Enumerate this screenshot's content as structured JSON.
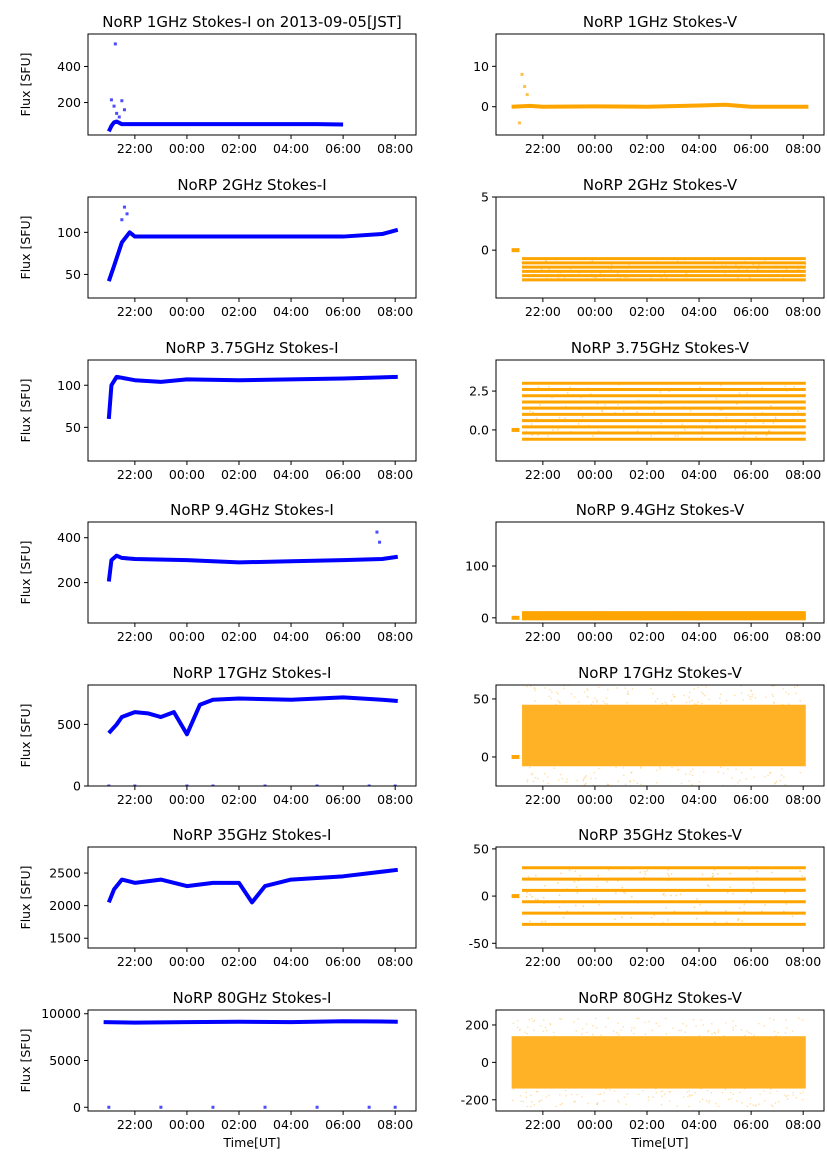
{
  "colors": {
    "stokes_i": "#0000ff",
    "stokes_v": "#ffa500"
  },
  "common": {
    "ylabel": "Flux [SFU]",
    "xlabel": "Time[UT]",
    "xticks": [
      "22:00",
      "00:00",
      "02:00",
      "04:00",
      "06:00",
      "08:00"
    ]
  },
  "chart_data": [
    {
      "id": "p1i",
      "type": "scatter",
      "title": "NoRP 1GHz Stokes-I on 2013-09-05[JST]",
      "ylabel": "Flux [SFU]",
      "color": "#0000ff",
      "ylim": [
        20,
        580
      ],
      "yticks": [
        200,
        400
      ],
      "series": [
        {
          "x": [
            21.0,
            21.1,
            21.2,
            21.3,
            21.5,
            22.0,
            23.0,
            1.0,
            3.0,
            5.0,
            6.0
          ],
          "y": [
            40,
            70,
            90,
            95,
            80,
            80,
            80,
            80,
            80,
            80,
            78
          ]
        }
      ],
      "scatter_points": [
        [
          21.1,
          215
        ],
        [
          21.2,
          180
        ],
        [
          21.25,
          525
        ],
        [
          21.3,
          140
        ],
        [
          21.4,
          120
        ],
        [
          21.5,
          210
        ],
        [
          21.6,
          160
        ]
      ]
    },
    {
      "id": "p1v",
      "type": "scatter",
      "title": "NoRP 1GHz Stokes-V",
      "color": "#ffa500",
      "ylim": [
        -7,
        18
      ],
      "yticks": [
        0,
        10
      ],
      "series": [
        {
          "x": [
            20.8,
            21.5,
            22.0,
            0.0,
            2.0,
            4.0,
            5.0,
            6.0,
            8.2
          ],
          "y": [
            0,
            0.2,
            0,
            0.1,
            0,
            0.3,
            0.5,
            0,
            0
          ]
        }
      ],
      "scatter_points": [
        [
          21.2,
          8
        ],
        [
          21.3,
          5
        ],
        [
          21.1,
          -4
        ],
        [
          21.4,
          3
        ]
      ]
    },
    {
      "id": "p2i",
      "type": "scatter",
      "title": "NoRP 2GHz Stokes-I",
      "ylabel": "Flux [SFU]",
      "color": "#0000ff",
      "ylim": [
        22,
        142
      ],
      "yticks": [
        50,
        100
      ],
      "series": [
        {
          "x": [
            21.0,
            21.2,
            21.5,
            21.8,
            22.0,
            0.0,
            2.0,
            4.0,
            6.0,
            7.5,
            8.1
          ],
          "y": [
            42,
            60,
            88,
            100,
            95,
            95,
            95,
            95,
            95,
            98,
            103
          ]
        }
      ],
      "scatter_points": [
        [
          21.6,
          130
        ],
        [
          21.7,
          122
        ],
        [
          21.5,
          115
        ]
      ]
    },
    {
      "id": "p2v",
      "type": "scatter",
      "title": "NoRP 2GHz Stokes-V",
      "color": "#ffa500",
      "ylim": [
        -4.5,
        5.0
      ],
      "yticks": [
        0,
        5
      ],
      "series": [
        {
          "x": [
            20.8,
            21.1
          ],
          "y": [
            0,
            0
          ]
        }
      ],
      "band": {
        "x0": 21.2,
        "x1": 8.1,
        "levels": [
          -0.8,
          -1.2,
          -1.6,
          -2.0,
          -2.4,
          -2.8
        ]
      }
    },
    {
      "id": "p3i",
      "type": "scatter",
      "title": "NoRP 3.75GHz Stokes-I",
      "ylabel": "Flux [SFU]",
      "color": "#0000ff",
      "ylim": [
        10,
        130
      ],
      "yticks": [
        50,
        100
      ],
      "series": [
        {
          "x": [
            21.0,
            21.1,
            21.3,
            22.0,
            23.0,
            0.0,
            2.0,
            4.0,
            6.0,
            8.1
          ],
          "y": [
            60,
            100,
            110,
            106,
            104,
            107,
            106,
            107,
            108,
            110
          ]
        }
      ]
    },
    {
      "id": "p3v",
      "type": "scatter",
      "title": "NoRP 3.75GHz Stokes-V",
      "color": "#ffa500",
      "ylim": [
        -2,
        4.5
      ],
      "yticks": [
        0.0,
        2.5
      ],
      "series": [
        {
          "x": [
            20.8,
            21.1
          ],
          "y": [
            0,
            0
          ]
        }
      ],
      "band": {
        "x0": 21.2,
        "x1": 8.1,
        "levels": [
          3.0,
          2.6,
          2.2,
          1.8,
          1.4,
          1.0,
          0.6,
          0.2,
          -0.2,
          -0.6
        ]
      }
    },
    {
      "id": "p4i",
      "type": "scatter",
      "title": "NoRP 9.4GHz Stokes-I",
      "ylabel": "Flux [SFU]",
      "color": "#0000ff",
      "ylim": [
        20,
        470
      ],
      "yticks": [
        200,
        400
      ],
      "series": [
        {
          "x": [
            21.0,
            21.1,
            21.3,
            21.5,
            22.0,
            0.0,
            2.0,
            4.0,
            6.0,
            7.5,
            8.1
          ],
          "y": [
            205,
            300,
            320,
            310,
            305,
            300,
            290,
            295,
            300,
            305,
            315
          ]
        }
      ],
      "scatter_points": [
        [
          7.3,
          425
        ],
        [
          7.4,
          380
        ]
      ]
    },
    {
      "id": "p4v",
      "type": "scatter",
      "title": "NoRP 9.4GHz Stokes-V",
      "color": "#ffa500",
      "ylim": [
        -10,
        185
      ],
      "yticks": [
        0,
        100
      ],
      "series": [
        {
          "x": [
            20.8,
            21.1
          ],
          "y": [
            0,
            0
          ]
        }
      ],
      "band": {
        "x0": 21.2,
        "x1": 8.1,
        "levels": [
          10,
          7,
          4,
          1,
          -2
        ]
      }
    },
    {
      "id": "p5i",
      "type": "scatter",
      "title": "NoRP 17GHz Stokes-I",
      "ylabel": "Flux [SFU]",
      "color": "#0000ff",
      "ylim": [
        0,
        820
      ],
      "yticks": [
        0,
        500
      ],
      "series": [
        {
          "x": [
            21.0,
            21.3,
            21.5,
            22.0,
            22.5,
            23.0,
            23.5,
            0.0,
            0.5,
            1.0,
            2.0,
            4.0,
            6.0,
            7.5,
            8.1
          ],
          "y": [
            430,
            500,
            560,
            600,
            590,
            560,
            600,
            420,
            660,
            700,
            710,
            700,
            720,
            700,
            690
          ]
        }
      ],
      "scatter_points": [
        [
          21.0,
          0
        ],
        [
          22.0,
          0
        ],
        [
          0.0,
          0
        ],
        [
          1.0,
          0
        ],
        [
          3.0,
          0
        ],
        [
          5.0,
          0
        ],
        [
          7.0,
          0
        ],
        [
          8.0,
          0
        ]
      ]
    },
    {
      "id": "p5v",
      "type": "scatter",
      "title": "NoRP 17GHz Stokes-V",
      "color": "#ffa500",
      "ylim": [
        -25,
        62
      ],
      "yticks": [
        0,
        50
      ],
      "series": [
        {
          "x": [
            20.8,
            21.1
          ],
          "y": [
            0,
            0
          ]
        }
      ],
      "cloud": {
        "x0": 21.2,
        "x1": 8.1,
        "ymin": -8,
        "ymax": 45
      }
    },
    {
      "id": "p6i",
      "type": "scatter",
      "title": "NoRP 35GHz Stokes-I",
      "ylabel": "Flux [SFU]",
      "color": "#0000ff",
      "ylim": [
        1350,
        2900
      ],
      "yticks": [
        1500,
        2000,
        2500
      ],
      "series": [
        {
          "x": [
            21.0,
            21.2,
            21.5,
            22.0,
            23.0,
            0.0,
            1.0,
            2.0,
            2.5,
            3.0,
            4.0,
            6.0,
            8.1
          ],
          "y": [
            2050,
            2250,
            2400,
            2350,
            2400,
            2300,
            2350,
            2350,
            2050,
            2300,
            2400,
            2450,
            2550
          ]
        }
      ]
    },
    {
      "id": "p6v",
      "type": "scatter",
      "title": "NoRP 35GHz Stokes-V",
      "color": "#ffa500",
      "ylim": [
        -55,
        52
      ],
      "yticks": [
        -50,
        0,
        50
      ],
      "series": [
        {
          "x": [
            20.8,
            21.1
          ],
          "y": [
            0,
            0
          ]
        }
      ],
      "band": {
        "x0": 21.2,
        "x1": 8.1,
        "levels": [
          30,
          18,
          6,
          -6,
          -18,
          -30
        ]
      }
    },
    {
      "id": "p7i",
      "type": "scatter",
      "title": "NoRP 80GHz Stokes-I",
      "ylabel": "Flux [SFU]",
      "xlabel": "Time[UT]",
      "color": "#0000ff",
      "ylim": [
        -400,
        10400
      ],
      "yticks": [
        0,
        5000,
        10000
      ],
      "series": [
        {
          "x": [
            20.8,
            22.0,
            0.0,
            2.0,
            4.0,
            6.0,
            8.1
          ],
          "y": [
            9100,
            9050,
            9100,
            9150,
            9100,
            9200,
            9150
          ]
        }
      ],
      "scatter_points": [
        [
          21.0,
          0
        ],
        [
          23.0,
          0
        ],
        [
          1.0,
          0
        ],
        [
          3.0,
          0
        ],
        [
          5.0,
          0
        ],
        [
          7.0,
          0
        ],
        [
          8.0,
          0
        ]
      ]
    },
    {
      "id": "p7v",
      "type": "scatter",
      "title": "NoRP 80GHz Stokes-V",
      "xlabel": "Time[UT]",
      "color": "#ffa500",
      "ylim": [
        -260,
        280
      ],
      "yticks": [
        -200,
        0,
        200
      ],
      "cloud": {
        "x0": 20.8,
        "x1": 8.1,
        "ymin": -140,
        "ymax": 140
      }
    }
  ]
}
